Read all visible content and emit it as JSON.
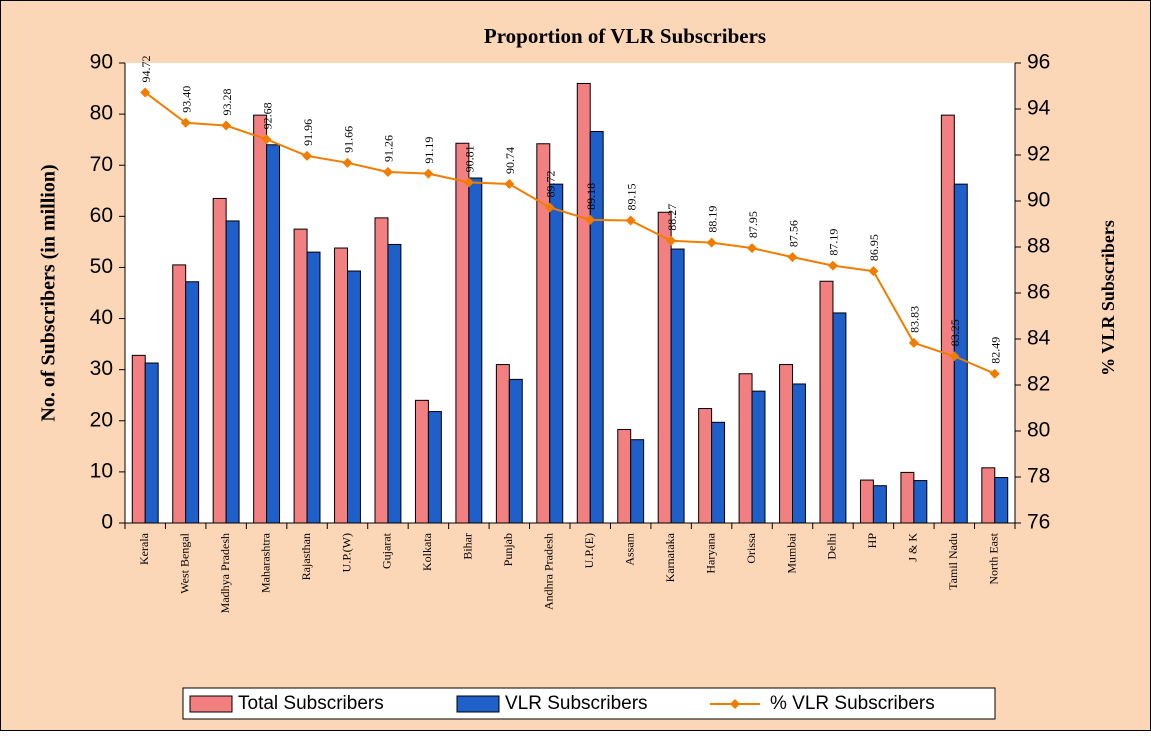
{
  "chart_data": {
    "type": "bar_line",
    "title": "Proportion of VLR Subscribers",
    "y_label": "No. of Subscribers (in million)",
    "y2_label": "% VLR Subscribers",
    "categories": [
      "Kerala",
      "West Bengal",
      "Madhya Pradesh",
      "Maharashtra",
      "Rajasthan",
      "U.P.(W)",
      "Gujarat",
      "Kolkata",
      "Bihar",
      "Punjab",
      "Andhra Pradesh",
      "U.P.(E)",
      "Assam",
      "Karnataka",
      "Haryana",
      "Orissa",
      "Mumbai",
      "Delhi",
      "HP",
      "J & K",
      "Tamil Nadu",
      "North East"
    ],
    "series": [
      {
        "name": "Total Subscribers",
        "type": "bar",
        "color": "#f28080",
        "values": [
          32.8,
          50.5,
          63.5,
          79.8,
          57.5,
          53.8,
          59.7,
          24,
          74.3,
          31,
          74.2,
          86,
          18.3,
          60.8,
          22.4,
          29.2,
          31,
          47.3,
          8.4,
          9.9,
          79.8,
          10.8
        ]
      },
      {
        "name": "VLR Subscribers",
        "type": "bar",
        "color": "#1f5fc9",
        "values": [
          31.3,
          47.2,
          59.1,
          74,
          53,
          49.3,
          54.5,
          21.8,
          67.5,
          28.1,
          66.3,
          76.6,
          16.3,
          53.6,
          19.7,
          25.8,
          27.2,
          41.1,
          7.3,
          8.3,
          66.3,
          8.9
        ]
      },
      {
        "name": "% VLR Subscribers",
        "type": "line",
        "axis": "y2",
        "color": "#f07d00",
        "values": [
          94.72,
          93.4,
          93.28,
          92.68,
          91.96,
          91.66,
          91.26,
          91.19,
          90.81,
          90.74,
          89.72,
          89.18,
          89.15,
          88.27,
          88.19,
          87.95,
          87.56,
          87.19,
          86.95,
          83.83,
          83.25,
          82.49
        ],
        "value_labels": [
          "94.72",
          "93.40",
          "93.28",
          "92.68",
          "91.96",
          "91.66",
          "91.26",
          "91.19",
          "90.81",
          "90.74",
          "89.72",
          "89.18",
          "89.15",
          "88.27",
          "88.19",
          "87.95",
          "87.56",
          "87.19",
          "86.95",
          "83.83",
          "83.25",
          "82.49"
        ]
      }
    ],
    "ylim": [
      0,
      90
    ],
    "yticks": [
      0,
      10,
      20,
      30,
      40,
      50,
      60,
      70,
      80,
      90
    ],
    "y2lim": [
      76,
      96
    ],
    "y2ticks": [
      76,
      78,
      80,
      82,
      84,
      86,
      88,
      90,
      92,
      94,
      96
    ],
    "grid": false,
    "legend": "bottom"
  }
}
